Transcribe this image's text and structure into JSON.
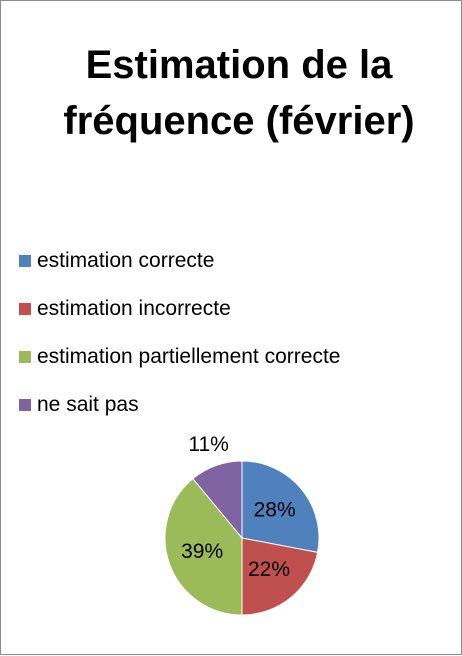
{
  "chart_data": {
    "type": "pie",
    "title": "Estimation de la fréquence (février)",
    "categories": [
      "estimation correcte",
      "estimation incorrecte",
      "estimation partiellement correcte",
      "ne sait pas"
    ],
    "values": [
      28,
      22,
      39,
      11
    ],
    "value_labels": [
      "28%",
      "22%",
      "39%",
      "11%"
    ],
    "colors": [
      "#4f81bd",
      "#c0504d",
      "#9bbb59",
      "#8064a2"
    ],
    "legend": "top"
  }
}
